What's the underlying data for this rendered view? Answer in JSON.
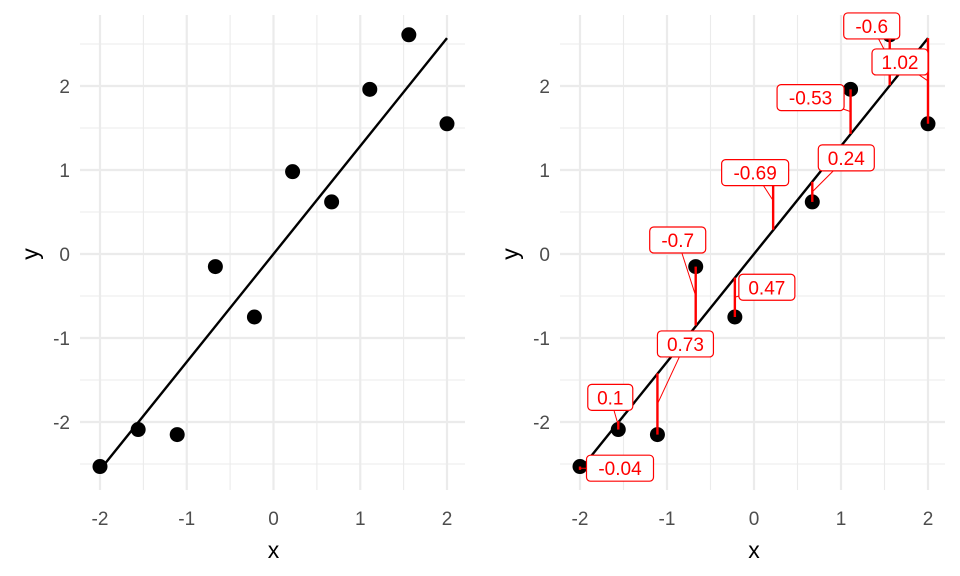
{
  "chart_data": [
    {
      "type": "scatter",
      "xlabel": "x",
      "ylabel": "y",
      "xlim": [
        -2.1,
        2.2
      ],
      "ylim": [
        -2.8,
        2.8
      ],
      "x_ticks": [
        -2,
        -1,
        0,
        1,
        2
      ],
      "y_ticks": [
        -2,
        -1,
        0,
        1,
        2
      ],
      "x_tick_labels": [
        "-2",
        "-1",
        "0",
        "1",
        "2"
      ],
      "y_tick_labels": [
        "-2",
        "-1",
        "0",
        "1",
        "2"
      ],
      "grid": true,
      "points": {
        "x": [
          -2.0,
          -1.56,
          -1.11,
          -0.67,
          -0.22,
          0.22,
          0.67,
          1.11,
          1.56,
          2.0
        ],
        "y": [
          -2.53,
          -2.09,
          -2.15,
          -0.15,
          -0.75,
          0.98,
          0.62,
          1.96,
          2.61,
          1.55
        ]
      },
      "fit_line": {
        "x": [
          -2.0,
          2.0
        ],
        "y": [
          -2.57,
          2.57
        ]
      }
    },
    {
      "type": "scatter",
      "xlabel": "x",
      "ylabel": "y",
      "xlim": [
        -2.1,
        2.2
      ],
      "ylim": [
        -2.8,
        2.8
      ],
      "x_ticks": [
        -2,
        -1,
        0,
        1,
        2
      ],
      "y_ticks": [
        -2,
        -1,
        0,
        1,
        2
      ],
      "x_tick_labels": [
        "-2",
        "-1",
        "0",
        "1",
        "2"
      ],
      "y_tick_labels": [
        "-2",
        "-1",
        "0",
        "1",
        "2"
      ],
      "grid": true,
      "points": {
        "x": [
          -2.0,
          -1.56,
          -1.11,
          -0.67,
          -0.22,
          0.22,
          0.67,
          1.11,
          1.56,
          2.0
        ],
        "y": [
          -2.53,
          -2.09,
          -2.15,
          -0.15,
          -0.75,
          0.98,
          0.62,
          1.96,
          2.61,
          1.55
        ]
      },
      "fit_line": {
        "x": [
          -2.0,
          2.0
        ],
        "y": [
          -2.57,
          2.57
        ]
      },
      "residual_color": "#ff0000",
      "residuals": [
        {
          "x": -2.0,
          "y": -2.53,
          "fitted": -2.57,
          "label": "-0.04"
        },
        {
          "x": -1.56,
          "y": -2.09,
          "fitted": -1.99,
          "label": "0.1"
        },
        {
          "x": -1.11,
          "y": -2.15,
          "fitted": -1.42,
          "label": "0.73"
        },
        {
          "x": -0.67,
          "y": -0.15,
          "fitted": -0.85,
          "label": "-0.7"
        },
        {
          "x": -0.22,
          "y": -0.75,
          "fitted": -0.28,
          "label": "0.47"
        },
        {
          "x": 0.22,
          "y": 0.98,
          "fitted": 0.29,
          "label": "-0.69"
        },
        {
          "x": 0.67,
          "y": 0.62,
          "fitted": 0.86,
          "label": "0.24"
        },
        {
          "x": 1.11,
          "y": 1.96,
          "fitted": 1.43,
          "label": "-0.53"
        },
        {
          "x": 1.56,
          "y": 2.61,
          "fitted": 2.01,
          "label": "-0.6"
        },
        {
          "x": 2.0,
          "y": 1.55,
          "fitted": 2.57,
          "label": "1.02"
        }
      ]
    }
  ]
}
